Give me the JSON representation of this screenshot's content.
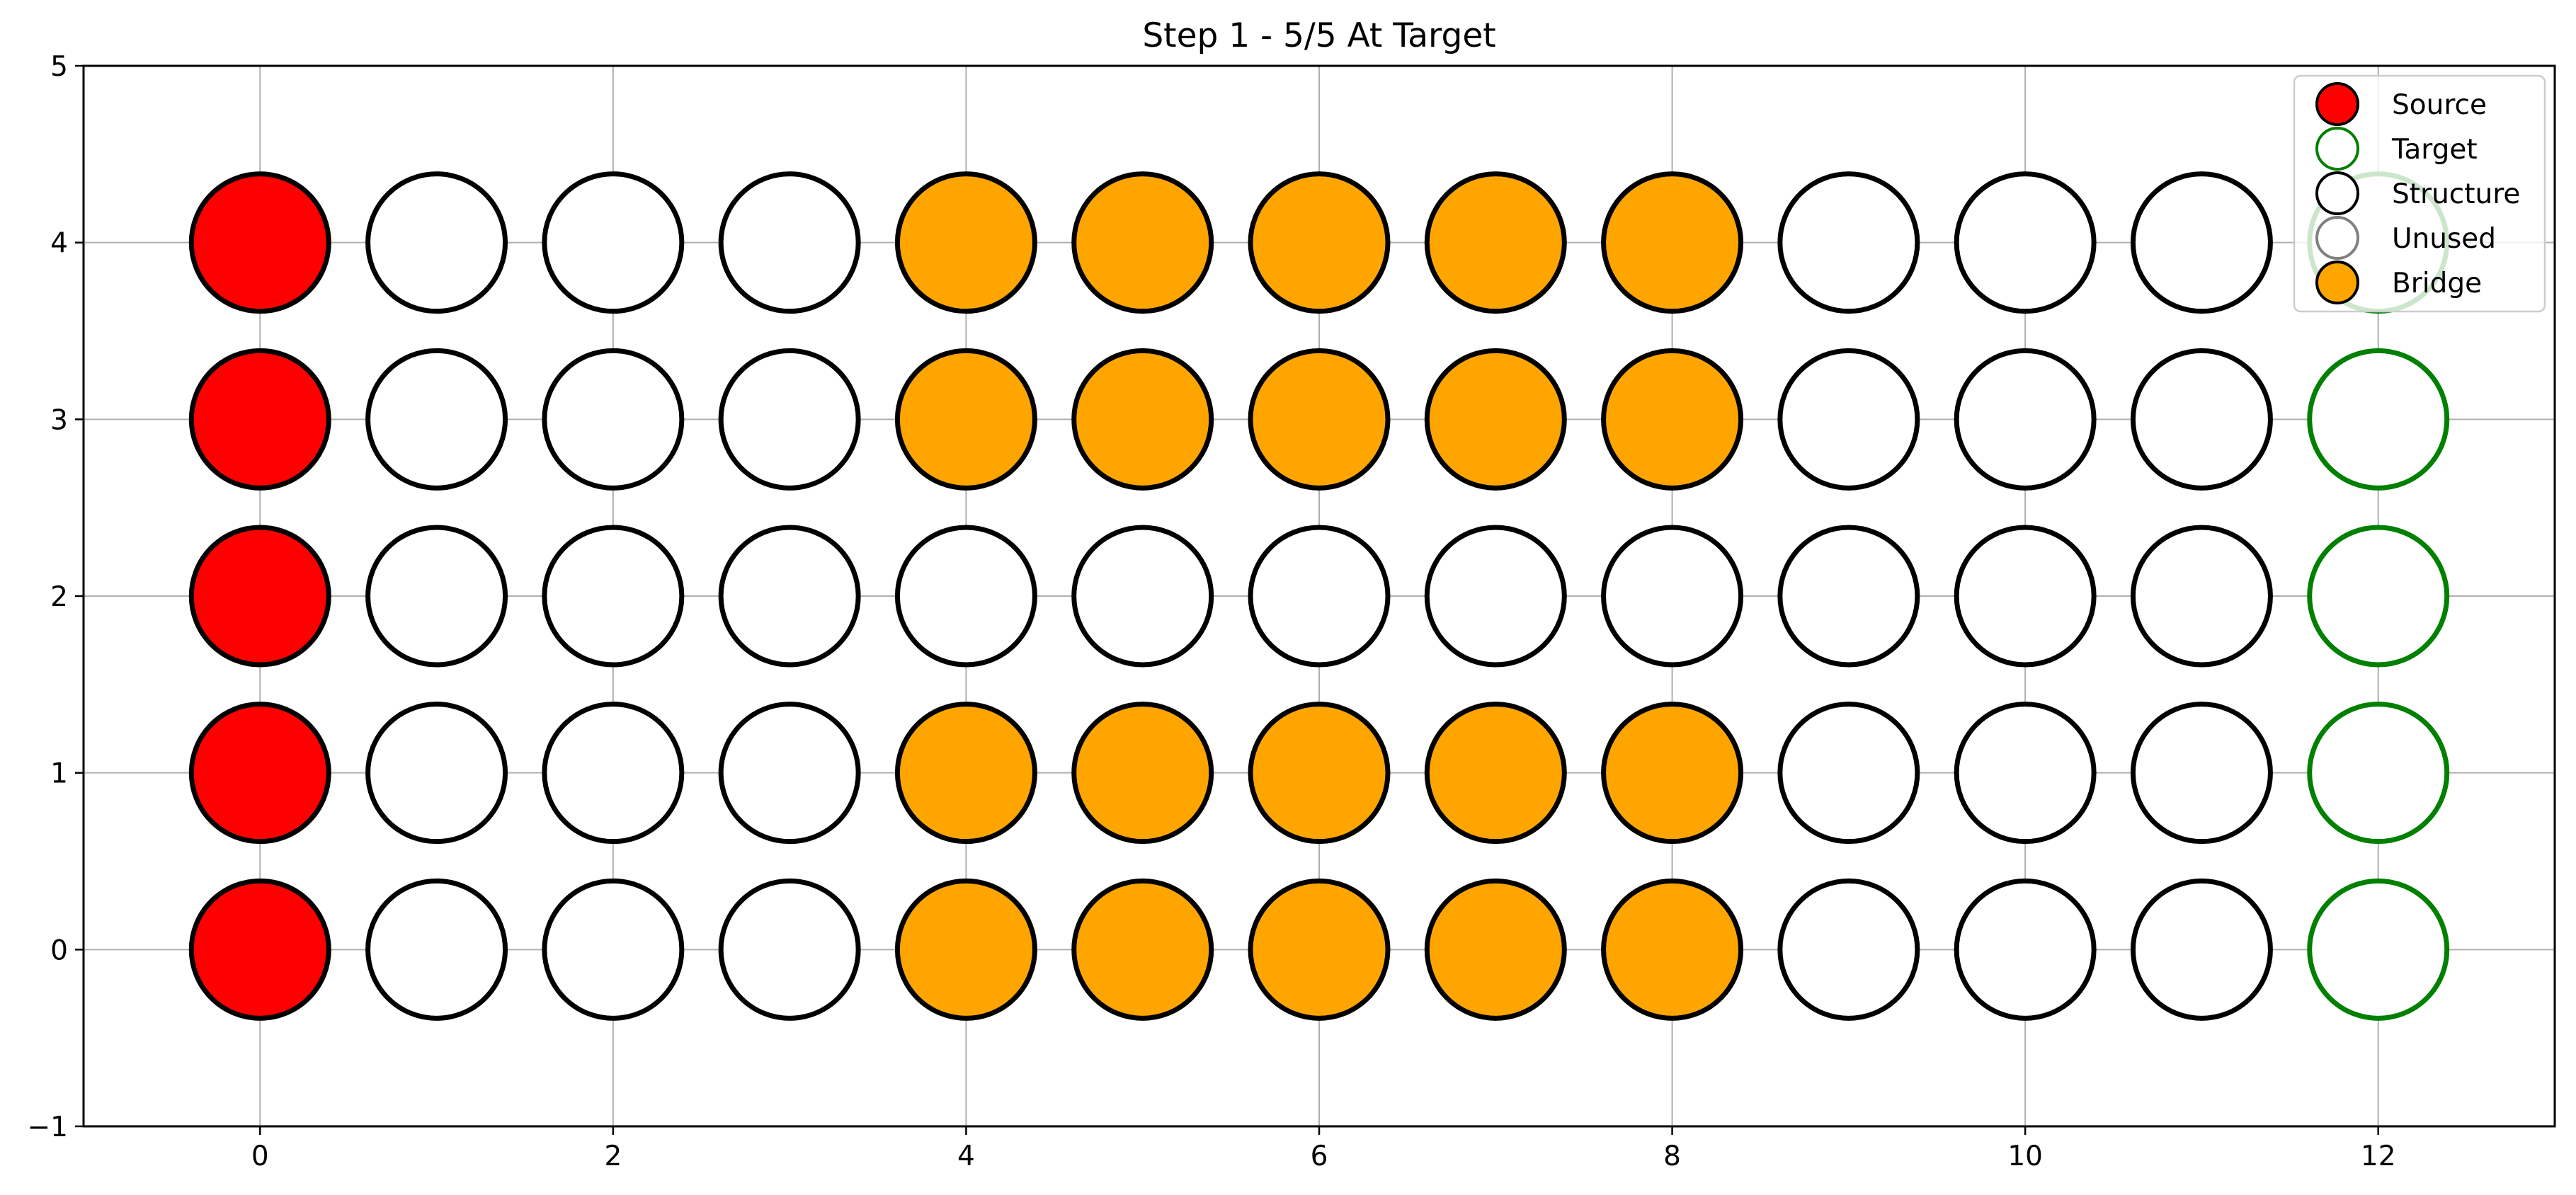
{
  "chart_data": {
    "type": "scatter",
    "title": "Step 1 - 5/5 At Target",
    "xlabel": "",
    "ylabel": "",
    "xlim": [
      -1,
      13
    ],
    "ylim": [
      -1,
      5
    ],
    "x_ticks": [
      0,
      2,
      4,
      6,
      8,
      10,
      12
    ],
    "y_ticks": [
      -1,
      0,
      1,
      2,
      3,
      4,
      5
    ],
    "grid": true,
    "legend_position": "top-right",
    "legend": [
      {
        "label": "Source",
        "fill": "#ff0000",
        "edge": "#000000"
      },
      {
        "label": "Target",
        "fill": "#ffffff",
        "edge": "#008000"
      },
      {
        "label": "Structure",
        "fill": "#ffffff",
        "edge": "#000000"
      },
      {
        "label": "Unused",
        "fill": "#ffffff",
        "edge": "#808080"
      },
      {
        "label": "Bridge",
        "fill": "#ffa500",
        "edge": "#000000"
      }
    ],
    "categories": {
      "source": {
        "fill": "#ff0000",
        "edge": "#000000"
      },
      "target": {
        "fill": "#ffffff",
        "edge": "#008000"
      },
      "structure": {
        "fill": "#ffffff",
        "edge": "#000000"
      },
      "bridge": {
        "fill": "#ffa500",
        "edge": "#000000"
      }
    },
    "grid_rows": [
      {
        "y": 4,
        "cells": [
          "source",
          "structure",
          "structure",
          "structure",
          "bridge",
          "bridge",
          "bridge",
          "bridge",
          "bridge",
          "structure",
          "structure",
          "structure",
          "target"
        ]
      },
      {
        "y": 3,
        "cells": [
          "source",
          "structure",
          "structure",
          "structure",
          "bridge",
          "bridge",
          "bridge",
          "bridge",
          "bridge",
          "structure",
          "structure",
          "structure",
          "target"
        ]
      },
      {
        "y": 2,
        "cells": [
          "source",
          "structure",
          "structure",
          "structure",
          "structure",
          "structure",
          "structure",
          "structure",
          "structure",
          "structure",
          "structure",
          "structure",
          "target"
        ]
      },
      {
        "y": 1,
        "cells": [
          "source",
          "structure",
          "structure",
          "structure",
          "bridge",
          "bridge",
          "bridge",
          "bridge",
          "bridge",
          "structure",
          "structure",
          "structure",
          "target"
        ]
      },
      {
        "y": 0,
        "cells": [
          "source",
          "structure",
          "structure",
          "structure",
          "bridge",
          "bridge",
          "bridge",
          "bridge",
          "bridge",
          "structure",
          "structure",
          "structure",
          "target"
        ]
      }
    ]
  }
}
